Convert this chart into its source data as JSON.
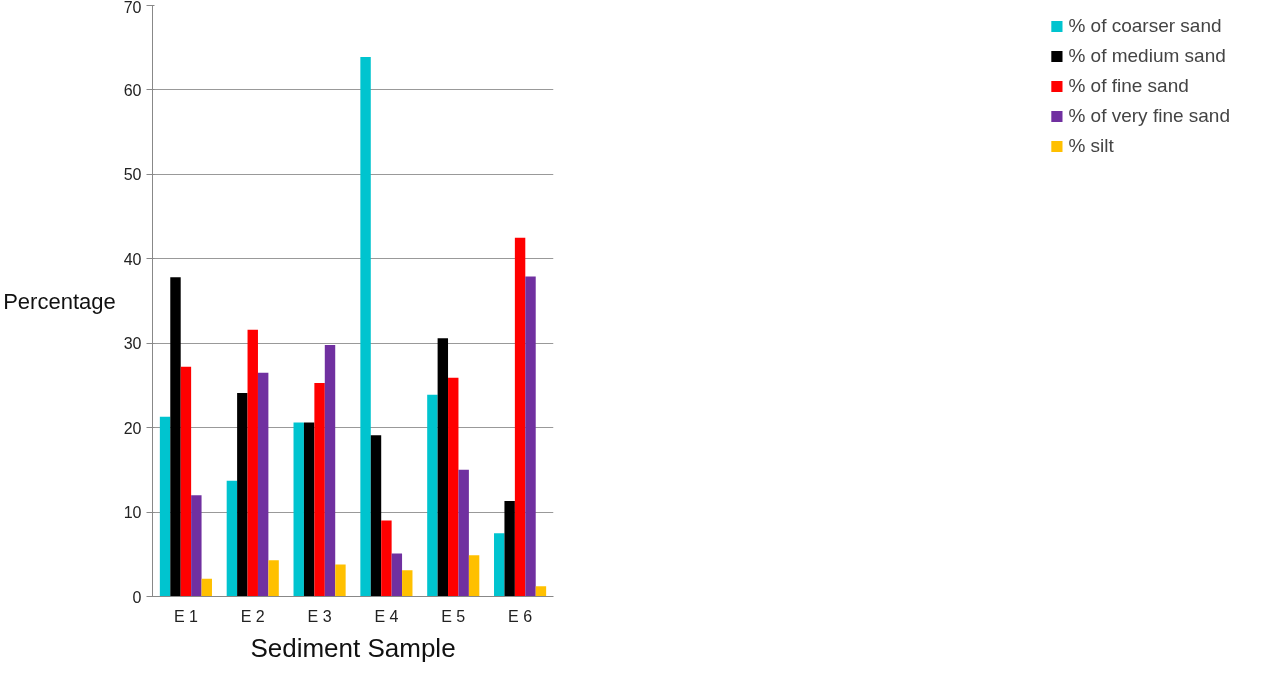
{
  "chart_data": {
    "type": "bar",
    "xlabel": "Sediment Sample",
    "ylabel": "Percentage",
    "categories": [
      "E 1",
      "E 2",
      "E 3",
      "E 4",
      "E 5",
      "E 6"
    ],
    "series": [
      {
        "name": "% of coarser sand",
        "color": "#00c4cf",
        "values": [
          21.3,
          13.7,
          20.6,
          63.9,
          23.9,
          7.5
        ]
      },
      {
        "name": "% of medium sand",
        "color": "#000000",
        "values": [
          37.8,
          24.1,
          20.6,
          19.1,
          30.6,
          11.3
        ]
      },
      {
        "name": "% of fine sand",
        "color": "#ff0000",
        "values": [
          27.2,
          31.6,
          25.3,
          9.0,
          25.9,
          42.5
        ]
      },
      {
        "name": "% of very fine sand",
        "color": "#7030a0",
        "values": [
          12.0,
          26.5,
          29.8,
          5.1,
          15.0,
          37.9
        ]
      },
      {
        "name": "% silt",
        "color": "#ffc000",
        "values": [
          2.1,
          4.3,
          3.8,
          3.1,
          4.9,
          1.2
        ]
      }
    ],
    "ylim": [
      0,
      70
    ],
    "yticks": [
      0,
      10,
      20,
      30,
      40,
      50,
      60,
      70
    ],
    "grid": "y",
    "legend": "right"
  }
}
